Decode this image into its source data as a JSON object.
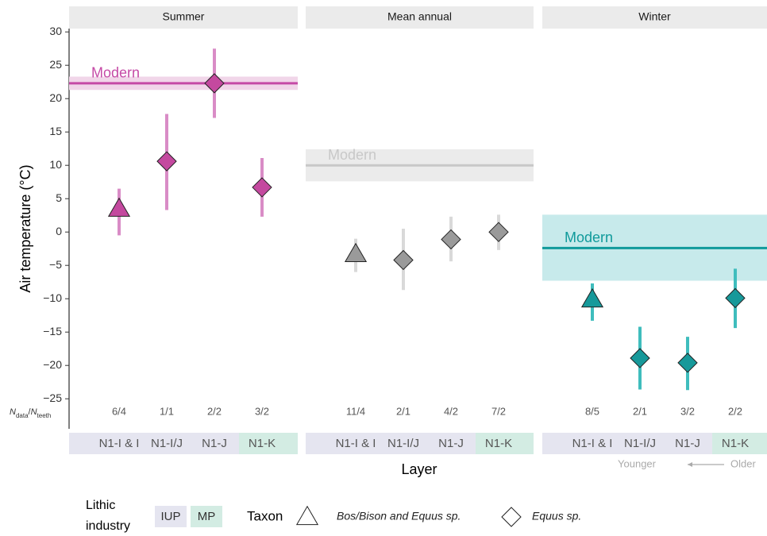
{
  "chart_data": [
    {
      "type": "errorbar",
      "title": "Summer",
      "categories": [
        "N1-I & I",
        "N1-I/J",
        "N1-J",
        "N1-K"
      ],
      "industry": [
        "IUP",
        "IUP",
        "IUP",
        "MP"
      ],
      "markers": [
        "triangle",
        "diamond",
        "diamond",
        "diamond"
      ],
      "values": [
        3.5,
        10.6,
        22.3,
        6.7
      ],
      "lower": [
        -0.5,
        3.3,
        17.1,
        2.3
      ],
      "upper": [
        6.5,
        17.7,
        27.5,
        11.1
      ],
      "count_labels": [
        "6/4",
        "1/1",
        "2/2",
        "3/2"
      ],
      "color": "#c4499f",
      "error_color": "#d98cc6",
      "modern": {
        "label": "Modern",
        "value": 22.3,
        "band": [
          21.3,
          23.3
        ],
        "color": "#c54aa6",
        "band_color": "#f1d6e9",
        "text_color": "#c54aa6"
      }
    },
    {
      "type": "errorbar",
      "title": "Mean annual",
      "categories": [
        "N1-I & I",
        "N1-I/J",
        "N1-J",
        "N1-K"
      ],
      "industry": [
        "IUP",
        "IUP",
        "IUP",
        "MP"
      ],
      "markers": [
        "triangle",
        "diamond",
        "diamond",
        "diamond"
      ],
      "values": [
        -3.3,
        -4.2,
        -1.1,
        0
      ],
      "lower": [
        -6,
        -8.7,
        -4.4,
        -2.7
      ],
      "upper": [
        -1,
        0.5,
        2.3,
        2.6
      ],
      "count_labels": [
        "11/4",
        "2/1",
        "4/2",
        "7/2"
      ],
      "color": "#9a9a9a",
      "error_color": "#d9d9d9",
      "modern": {
        "label": "Modern",
        "value": 10,
        "band": [
          7.6,
          12.4
        ],
        "color": "#c8c8c8",
        "band_color": "#ebebeb",
        "text_color": "#c8c8c8"
      }
    },
    {
      "type": "errorbar",
      "title": "Winter",
      "categories": [
        "N1-I & I",
        "N1-I/J",
        "N1-J",
        "N1-K"
      ],
      "industry": [
        "IUP",
        "IUP",
        "IUP",
        "MP"
      ],
      "markers": [
        "triangle",
        "diamond",
        "diamond",
        "diamond"
      ],
      "values": [
        -10.1,
        -18.9,
        -19.6,
        -9.9
      ],
      "lower": [
        -13.3,
        -23.6,
        -23.7,
        -14.4
      ],
      "upper": [
        -7.7,
        -14.2,
        -15.7,
        -5.5
      ],
      "count_labels": [
        "8/5",
        "2/1",
        "3/2",
        "2/2"
      ],
      "color": "#17999a",
      "error_color": "#3fbdbd",
      "modern": {
        "label": "Modern",
        "value": -2.4,
        "band": [
          -7.3,
          2.6
        ],
        "color": "#109a9b",
        "band_color": "#c7eaeb",
        "text_color": "#109a9b"
      }
    }
  ],
  "y_axis": {
    "label": "Air temperature (°C)",
    "ylim": [
      -29.5,
      30.5
    ],
    "yticks": [
      {
        "value": -25,
        "label": "−25"
      },
      {
        "value": -20,
        "label": "−20"
      },
      {
        "value": -15,
        "label": "−15"
      },
      {
        "value": -10,
        "label": "−10"
      },
      {
        "value": -5,
        "label": "−5"
      },
      0,
      5,
      10,
      15,
      20,
      25,
      30
    ]
  },
  "x_label": "Layer",
  "n_label": [
    "N",
    "data",
    "/",
    "N",
    "teeth"
  ],
  "direction": {
    "younger": "Younger",
    "older": "Older"
  },
  "legend": {
    "industry_title": [
      "Lithic",
      "industry"
    ],
    "industries": [
      {
        "name": "IUP",
        "color": "#e5e5f0"
      },
      {
        "name": "MP",
        "color": "#d3ece3"
      }
    ],
    "taxon_title": "Taxon",
    "taxa": [
      {
        "marker": "triangle",
        "label": "Bos/Bison and Equus sp."
      },
      {
        "marker": "diamond",
        "label": "Equus sp."
      }
    ]
  }
}
